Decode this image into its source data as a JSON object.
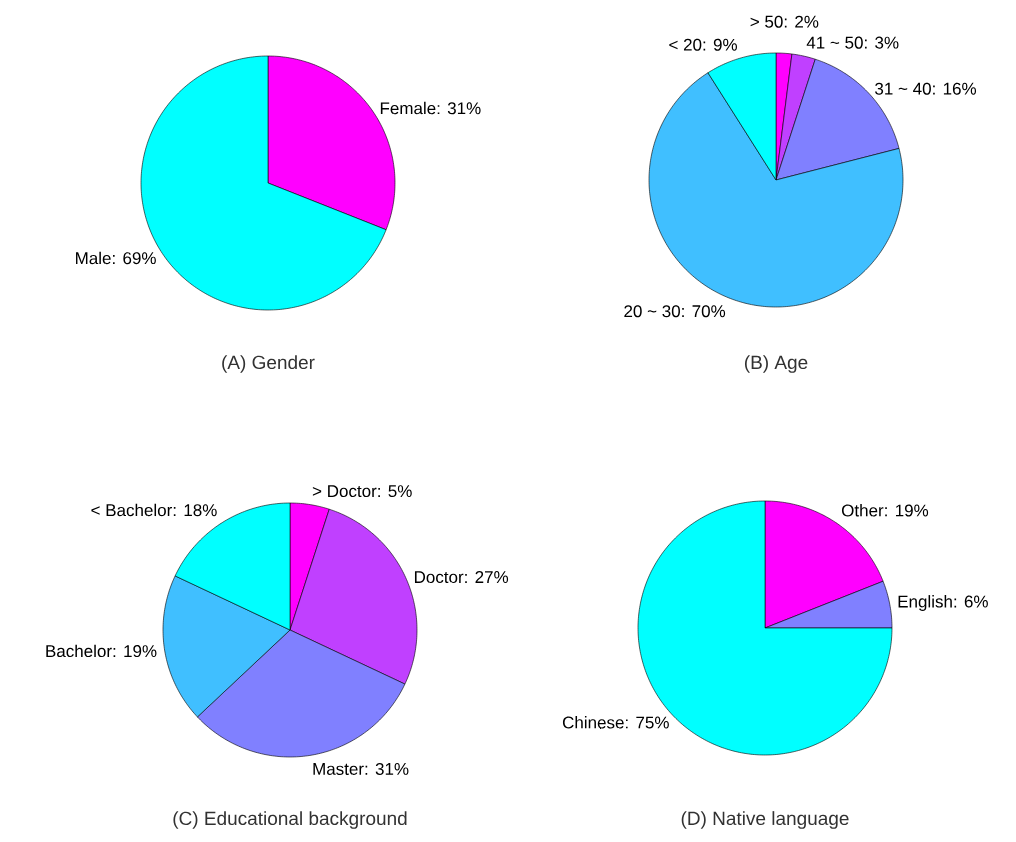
{
  "chart_data": [
    {
      "type": "pie",
      "title": "(A) Gender",
      "categories": [
        null,
        null
      ],
      "values": [
        31,
        69
      ],
      "value_labels": [
        "Female: 31%",
        "Male: 69%"
      ],
      "colors": [
        "#ff00ff",
        "#00ffff"
      ]
    },
    {
      "type": "pie",
      "title": "(B) Age",
      "categories": [
        null,
        null,
        null,
        null,
        null
      ],
      "values": [
        2,
        3,
        16,
        70,
        9
      ],
      "value_labels": [
        "> 50: 2%",
        "41 ~ 50: 3%",
        "31 ~ 40: 16%",
        "20 ~ 30: 70%",
        "< 20: 9%"
      ],
      "colors": [
        "#ff00ff",
        "#c040ff",
        "#8080ff",
        "#40bfff",
        "#00ffff"
      ]
    },
    {
      "type": "pie",
      "title": "(C) Educational background",
      "categories": [
        null,
        null,
        null,
        null,
        null
      ],
      "values": [
        5,
        27,
        31,
        19,
        18
      ],
      "value_labels": [
        "> Doctor: 5%",
        "Doctor: 27%",
        "Master: 31%",
        "Bachelor: 19%",
        "< Bachelor: 18%"
      ],
      "colors": [
        "#ff00ff",
        "#c040ff",
        "#8080ff",
        "#40bfff",
        "#00ffff"
      ]
    },
    {
      "type": "pie",
      "title": "(D) Native language",
      "categories": [
        null,
        null,
        null
      ],
      "values": [
        19,
        6,
        75
      ],
      "value_labels": [
        "Other: 19%",
        "English: 6%",
        "Chinese: 75%"
      ],
      "colors": [
        "#ff00ff",
        "#8080ff",
        "#00ffff"
      ]
    }
  ]
}
